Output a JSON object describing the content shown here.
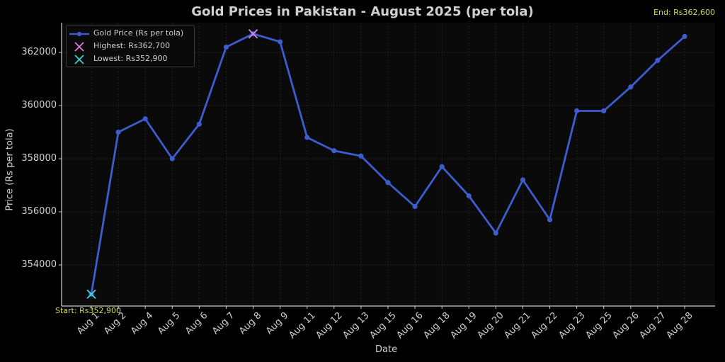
{
  "chart_data": {
    "type": "line",
    "title": "Gold Prices in Pakistan - August 2025 (per tola)",
    "xlabel": "Date",
    "ylabel": "Price (Rs per tola)",
    "categories": [
      "Aug 1",
      "Aug 2",
      "Aug 4",
      "Aug 5",
      "Aug 6",
      "Aug 7",
      "Aug 8",
      "Aug 9",
      "Aug 11",
      "Aug 12",
      "Aug 13",
      "Aug 15",
      "Aug 16",
      "Aug 18",
      "Aug 19",
      "Aug 20",
      "Aug 21",
      "Aug 22",
      "Aug 23",
      "Aug 25",
      "Aug 26",
      "Aug 27",
      "Aug 28"
    ],
    "series": [
      {
        "name": "Gold Price (Rs per tola)",
        "color": "#3d5ccf",
        "values": [
          352900,
          359000,
          359500,
          358000,
          359300,
          362200,
          362700,
          362400,
          358800,
          358300,
          358100,
          357100,
          356200,
          357700,
          356600,
          355200,
          357200,
          355700,
          359800,
          359800,
          360700,
          361700,
          362600
        ]
      }
    ],
    "markers": [
      {
        "name": "Highest: Rs362,700",
        "category": "Aug 8",
        "value": 362700,
        "color": "#e080e8"
      },
      {
        "name": "Lowest: Rs352,900",
        "category": "Aug 1",
        "value": 352900,
        "color": "#3ad8d8"
      }
    ],
    "annotations": [
      {
        "text": "Start: Rs352,900",
        "color": "#d6d65a"
      },
      {
        "text": "End: Rs362,600",
        "color": "#d6d65a"
      }
    ],
    "yticks": [
      354000,
      356000,
      358000,
      360000,
      362000
    ],
    "ylim": [
      352400,
      363200
    ],
    "grid": true,
    "legend_position": "upper left"
  },
  "labels": {
    "title": "Gold Prices in Pakistan - August 2025 (per tola)",
    "xlabel": "Date",
    "ylabel": "Price (Rs per tola)",
    "start": "Start: Rs352,900",
    "end": "End: Rs362,600",
    "legend": [
      "Gold Price (Rs per tola)",
      "Highest: Rs362,700",
      "Lowest: Rs352,900"
    ]
  }
}
